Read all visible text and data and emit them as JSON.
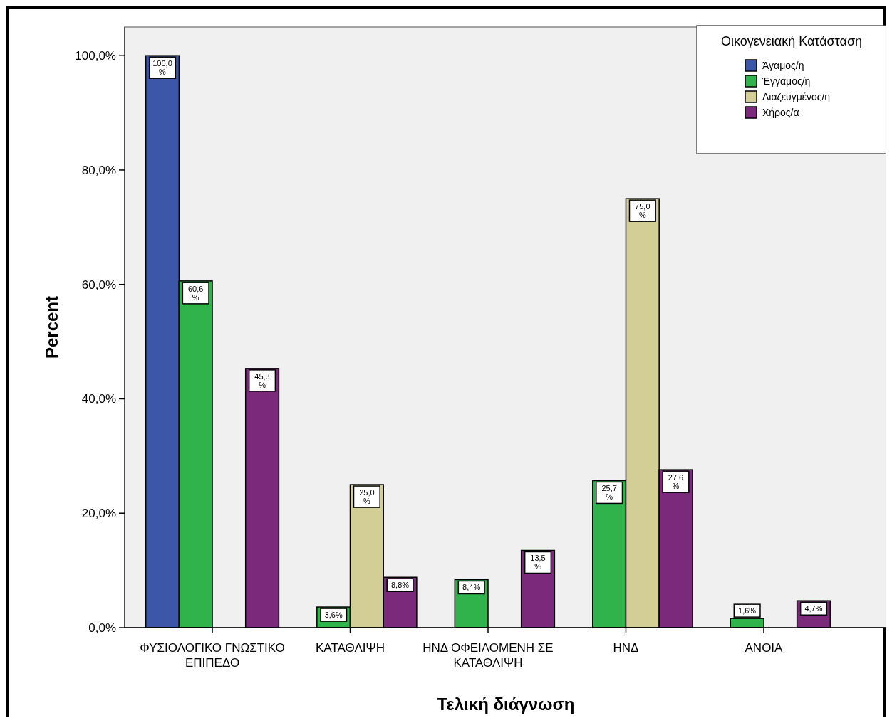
{
  "chart_data": {
    "type": "bar",
    "xlabel": "Τελική διάγνωση",
    "ylabel": "Percent",
    "legend_title": "Οικογενειακή Κατάσταση",
    "legend": "top right",
    "grid": false,
    "categories": [
      "ΦΥΣΙΟΛΟΓΙΚΟ ΓΝΩΣΤΙΚΟ ΕΠΙΠΕΔΟ",
      "ΚΑΤΑΘΛΙΨΗ",
      "ΗΝΔ ΟΦΕΙΛΟΜΕΝΗ ΣΕ ΚΑΤΑΘΛΙΨΗ",
      "ΗΝΔ",
      "ΑΝΟΙΑ"
    ],
    "ylim": [
      0,
      105
    ],
    "yticks": [
      {
        "value": 0,
        "label": "0,0%"
      },
      {
        "value": 20,
        "label": "20,0%"
      },
      {
        "value": 40,
        "label": "40,0%"
      },
      {
        "value": 60,
        "label": "60,0%"
      },
      {
        "value": 80,
        "label": "80,0%"
      },
      {
        "value": 100,
        "label": "100,0%"
      }
    ],
    "series": [
      {
        "name": "Άγαμος/η",
        "color": "#3c56a8",
        "values": [
          100,
          0,
          0,
          0,
          0
        ],
        "value_labels": [
          "100,0%",
          null,
          null,
          null,
          null
        ]
      },
      {
        "name": "Έγγαμος/η",
        "color": "#30b34a",
        "values": [
          60.6,
          3.6,
          8.4,
          25.7,
          1.6
        ],
        "value_labels": [
          "60,6%",
          "3,6%",
          "8,4%",
          "25,7%",
          "1,6%"
        ]
      },
      {
        "name": "Διαζευγμένος/η",
        "color": "#d3cd96",
        "values": [
          0,
          25,
          0,
          75,
          0
        ],
        "value_labels": [
          null,
          "25,0%",
          null,
          "75,0%",
          null
        ]
      },
      {
        "name": "Χήρος/α",
        "color": "#7b2a7b",
        "values": [
          45.3,
          8.8,
          13.5,
          27.6,
          4.7
        ],
        "value_labels": [
          "45,3%",
          "8,8%",
          "13,5%",
          "27,6%",
          "4,7%"
        ]
      }
    ]
  }
}
